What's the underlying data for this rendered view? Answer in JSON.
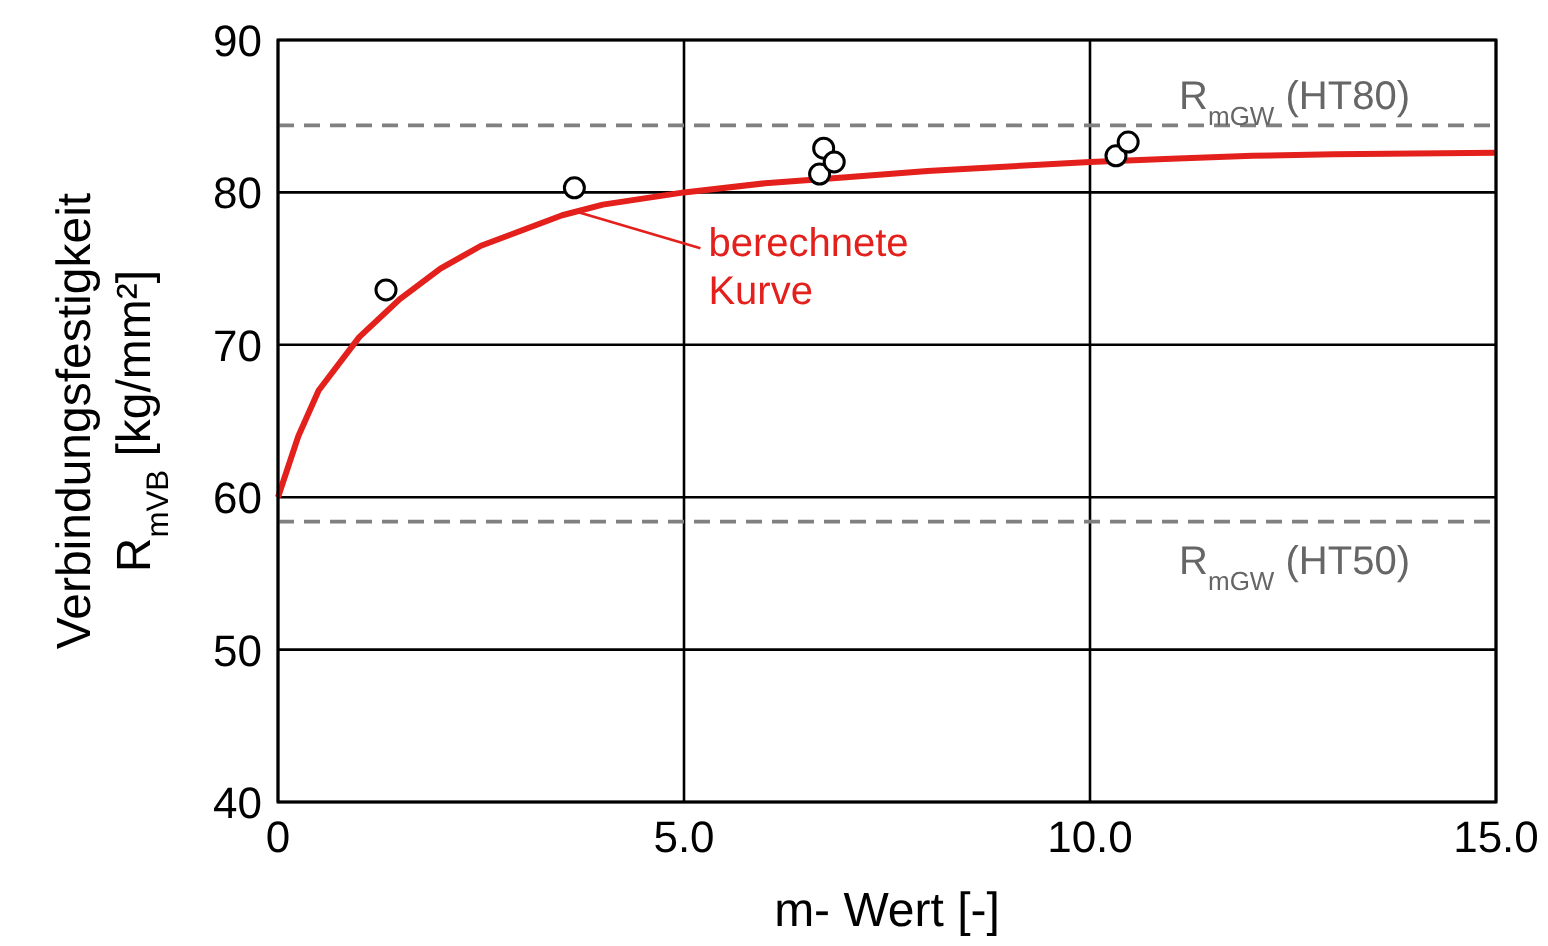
{
  "chart_data": {
    "type": "scatter",
    "xlabel": "m- Wert [-]",
    "ylabel": "Verbindungsfestigkeit R$_{mVB}$ [kg/mm²]",
    "xlim": [
      0,
      15
    ],
    "ylim": [
      40,
      90
    ],
    "xticks": [
      {
        "value": 0,
        "label": "0"
      },
      {
        "value": 5,
        "label": "5.0"
      },
      {
        "value": 10,
        "label": "10.0"
      },
      {
        "value": 15,
        "label": "15.0"
      }
    ],
    "yticks": [
      40,
      50,
      60,
      70,
      80,
      90
    ],
    "grid": true,
    "series": [
      {
        "type": "line",
        "color": "#e3201b",
        "line_style": "solid",
        "marker": "none",
        "x": [
          0,
          0.25,
          0.5,
          1,
          1.5,
          2,
          2.5,
          3,
          3.5,
          4,
          5,
          6,
          7,
          8,
          9,
          10,
          11,
          12,
          13,
          15
        ],
        "values": [
          60,
          64,
          67,
          70.5,
          73,
          75,
          76.5,
          77.5,
          78.5,
          79.2,
          80,
          80.6,
          81,
          81.4,
          81.7,
          82,
          82.2,
          82.4,
          82.5,
          82.6
        ]
      },
      {
        "color": "#000000",
        "marker": "circle",
        "x": [
          1.33,
          3.65,
          6.72,
          6.67,
          6.85,
          10.32,
          10.47
        ],
        "values": [
          73.6,
          80.3,
          82.9,
          81.2,
          82,
          82.4,
          83.3
        ]
      }
    ],
    "ref_lines": [
      {
        "axis": "y",
        "value": 84.4,
        "label": "R$_{mGW}$ (HT80)",
        "color": "#808080",
        "line_style": "dashed"
      },
      {
        "axis": "y",
        "value": 58.4,
        "label": "R$_{mGW}$ (HT50)",
        "color": "#808080",
        "line_style": "dashed"
      }
    ],
    "annotations": [
      {
        "text": "berechnete Kurve",
        "x": 3.7,
        "y": 78.7
      }
    ]
  }
}
